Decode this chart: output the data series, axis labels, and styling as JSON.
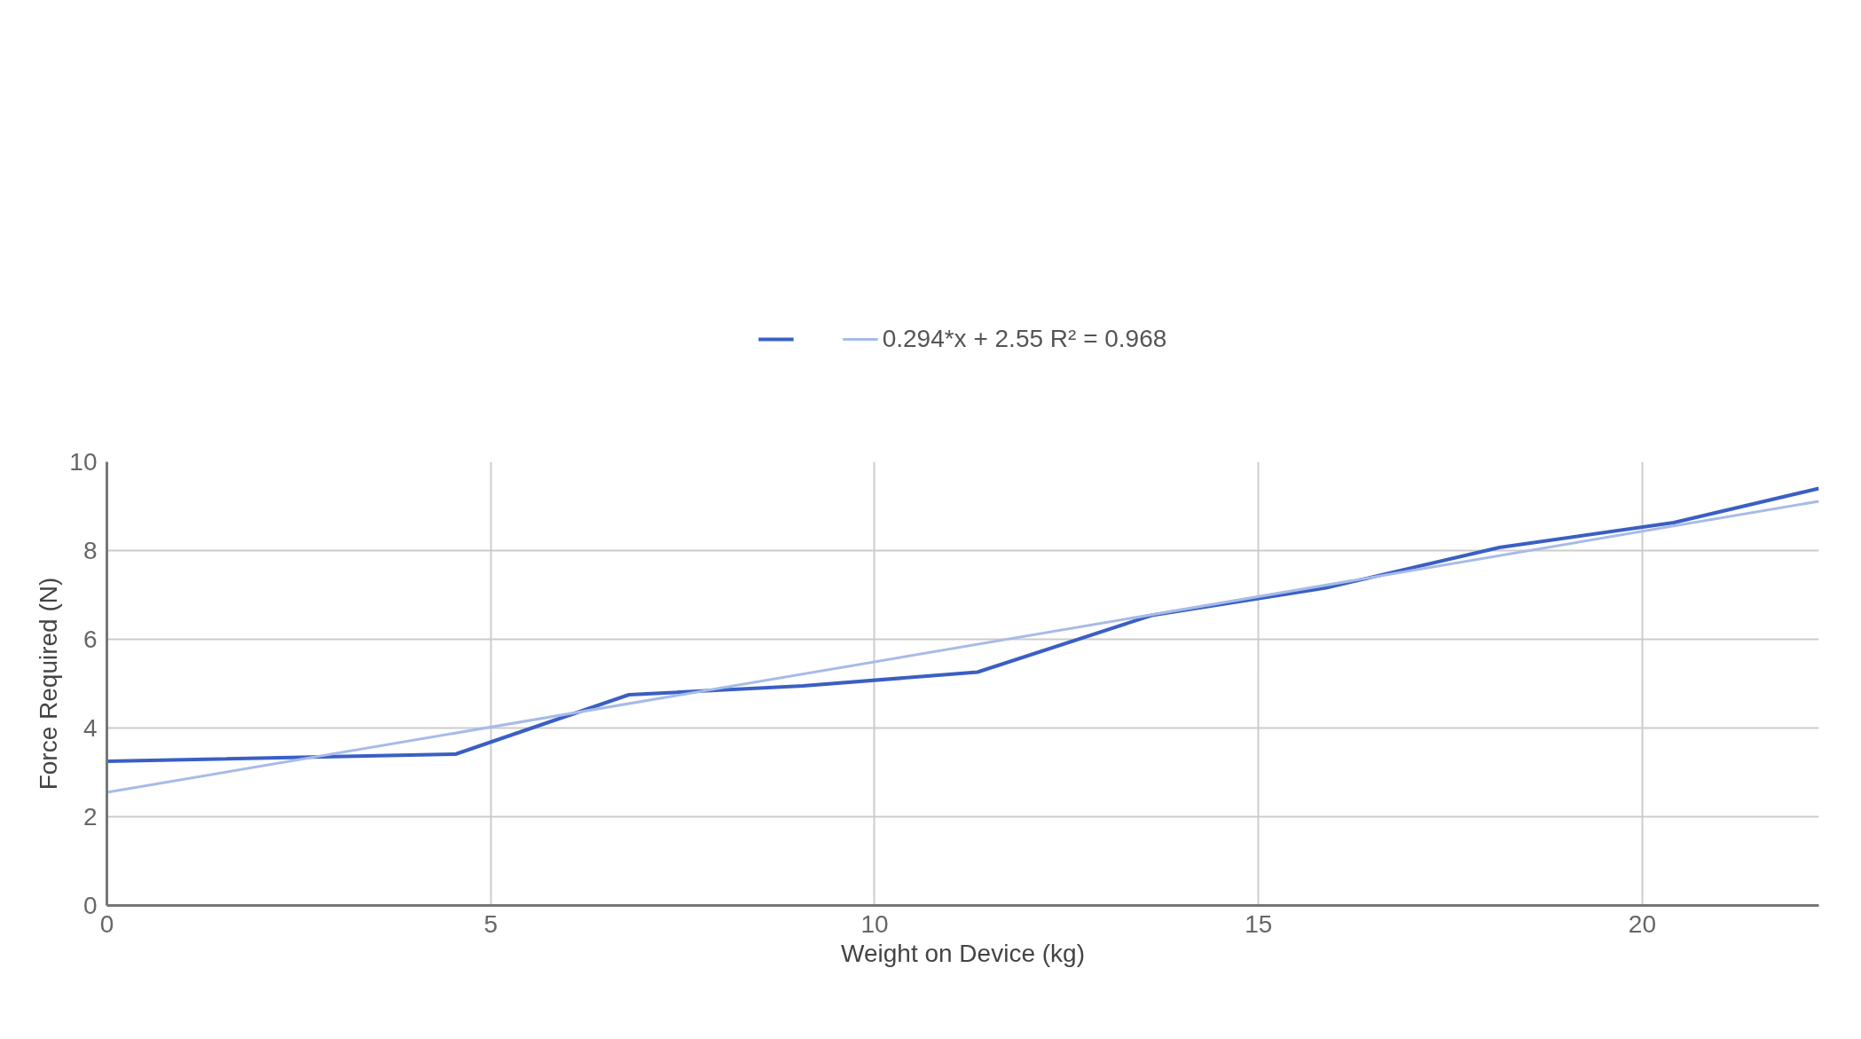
{
  "chart_data": {
    "type": "line",
    "xlabel": "Weight on Device (kg)",
    "ylabel": "Force Required (N)",
    "series": [
      {
        "color": "#3a5fc4",
        "x": [
          0,
          4.54,
          6.8,
          9.07,
          11.34,
          13.61,
          15.88,
          18.14,
          20.41,
          22.3
        ],
        "values": [
          3.25,
          3.41,
          4.75,
          4.95,
          5.26,
          6.54,
          7.16,
          8.07,
          8.63,
          9.4
        ]
      },
      {
        "name": "0.294*x + 2.55 R² = 0.968",
        "color": "#a7bbe8",
        "x": [
          0,
          22.3
        ],
        "values": [
          2.55,
          9.11
        ]
      }
    ],
    "xlim": [
      0,
      22.3
    ],
    "ylim": [
      0,
      10
    ],
    "xticks": [
      0,
      5,
      10,
      15,
      20
    ],
    "yticks": [
      0,
      2,
      4,
      6,
      8,
      10
    ],
    "grid": true,
    "legend": "top",
    "marker": "none",
    "line_style": "solid"
  }
}
